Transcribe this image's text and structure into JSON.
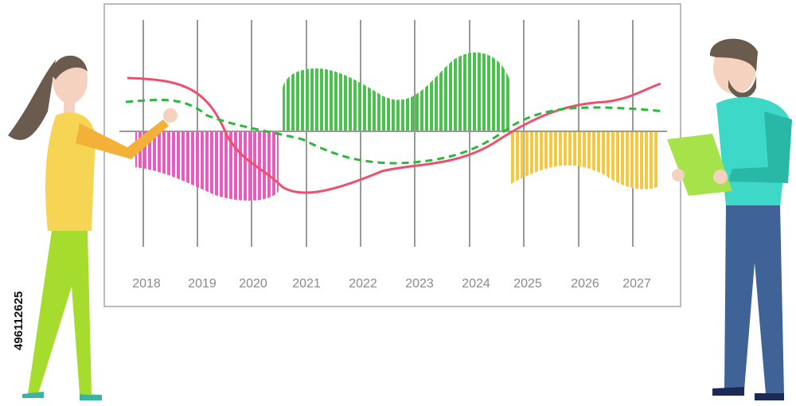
{
  "board": {
    "years": [
      "2018",
      "2019",
      "2020",
      "2021",
      "2022",
      "2023",
      "2024",
      "2025",
      "2026",
      "2027"
    ]
  },
  "stock_id": "496112625"
}
